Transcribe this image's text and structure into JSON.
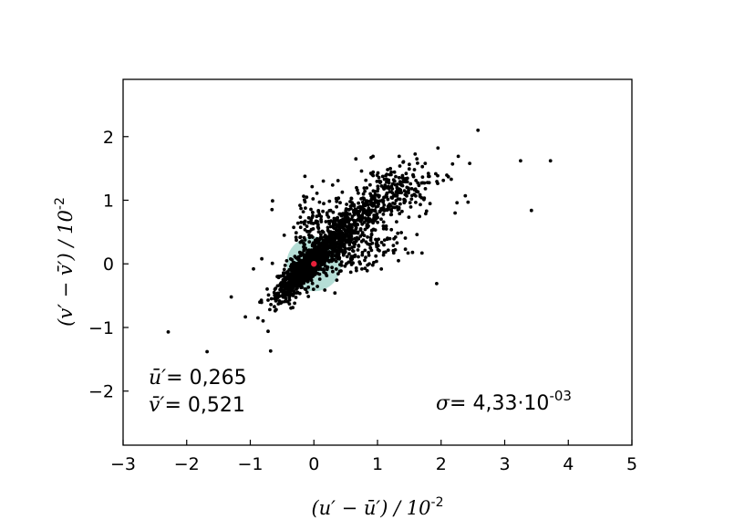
{
  "chart_data": {
    "type": "scatter",
    "title": "",
    "xlabel": "(u′ − ū′) / 10",
    "xlabel_exp": "-2",
    "ylabel": "(v′ − v̄′) / 10",
    "ylabel_exp": "-2",
    "xlim": [
      -3,
      5
    ],
    "ylim": [
      -2.85,
      2.9
    ],
    "x_ticks": [
      -3,
      -2,
      -1,
      0,
      1,
      2,
      3,
      4,
      5
    ],
    "x_tick_labels": [
      "−3",
      "−2",
      "−1",
      "0",
      "1",
      "2",
      "3",
      "4",
      "5"
    ],
    "y_ticks": [
      -2,
      -1,
      0,
      1,
      2
    ],
    "y_tick_labels": [
      "−2",
      "−1",
      "0",
      "1",
      "2"
    ],
    "grid": false,
    "legend": "none",
    "colors": {
      "points": "#000000",
      "mean": "#e8203a",
      "sigma_circle": "#a8d8cf"
    },
    "sigma_circle": {
      "cx": 0,
      "cy": 0,
      "r": 0.43
    },
    "mean_point": {
      "x": 0,
      "y": 0
    },
    "annotations": {
      "u_mean_label": "ū′",
      "u_mean_value": "= 0,265",
      "v_mean_label": "v̄′",
      "v_mean_value": "= 0,521",
      "sigma_label": "σ",
      "sigma_value": "= 4,33·10",
      "sigma_exp": "-03"
    },
    "outlier_points": [
      [
        2.58,
        2.1
      ],
      [
        3.25,
        1.62
      ],
      [
        3.72,
        1.62
      ],
      [
        3.42,
        0.84
      ],
      [
        2.38,
        1.07
      ],
      [
        2.22,
        0.8
      ],
      [
        2.25,
        0.96
      ],
      [
        1.95,
        1.82
      ],
      [
        1.93,
        -0.31
      ],
      [
        2.18,
        1.57
      ],
      [
        2.27,
        1.69
      ],
      [
        2.45,
        1.58
      ],
      [
        -2.29,
        -1.07
      ],
      [
        -1.68,
        -1.38
      ],
      [
        -0.68,
        -1.37
      ],
      [
        -1.3,
        -0.52
      ],
      [
        -0.65,
        0.99
      ],
      [
        -0.88,
        -0.85
      ],
      [
        -0.72,
        -1.06
      ],
      [
        0.93,
        1.69
      ],
      [
        0.9,
        1.67
      ],
      [
        0.66,
        1.65
      ],
      [
        1.33,
        0.05
      ],
      [
        1.7,
        0.17
      ],
      [
        1.55,
        0.18
      ],
      [
        1.48,
        0.17
      ],
      [
        1.28,
        0.22
      ],
      [
        1.1,
        0.18
      ],
      [
        -0.95,
        -0.08
      ],
      [
        -0.82,
        0.08
      ],
      [
        1.62,
        1.65
      ],
      [
        1.75,
        1.58
      ],
      [
        1.8,
        1.42
      ],
      [
        1.58,
        1.48
      ],
      [
        1.45,
        1.42
      ]
    ],
    "clusters": [
      {
        "x": -0.2,
        "y": -0.15,
        "sx": 0.18,
        "sy": 0.18,
        "rho": 0.85,
        "n": 650
      },
      {
        "x": 0.05,
        "y": 0.1,
        "sx": 0.3,
        "sy": 0.3,
        "rho": 0.85,
        "n": 500
      },
      {
        "x": 0.55,
        "y": 0.55,
        "sx": 0.4,
        "sy": 0.35,
        "rho": 0.78,
        "n": 420
      },
      {
        "x": 1.15,
        "y": 1.05,
        "sx": 0.45,
        "sy": 0.32,
        "rho": 0.55,
        "n": 230
      },
      {
        "x": -0.05,
        "y": 0.65,
        "sx": 0.18,
        "sy": 0.35,
        "rho": 0.4,
        "n": 90
      },
      {
        "x": 0.7,
        "y": 0.15,
        "sx": 0.35,
        "sy": 0.2,
        "rho": 0.6,
        "n": 110
      }
    ]
  }
}
